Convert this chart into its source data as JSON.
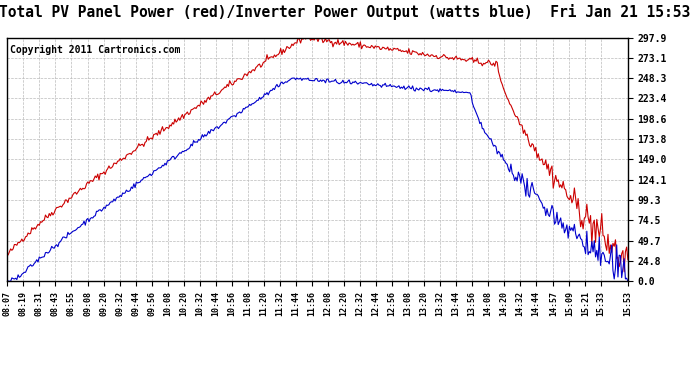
{
  "title": "Total PV Panel Power (red)/Inverter Power Output (watts blue)  Fri Jan 21 15:53",
  "copyright": "Copyright 2011 Cartronics.com",
  "yticks": [
    0.0,
    24.8,
    49.7,
    74.5,
    99.3,
    124.1,
    149.0,
    173.8,
    198.6,
    223.4,
    248.3,
    273.1,
    297.9
  ],
  "ymin": 0.0,
  "ymax": 297.9,
  "xtick_labels": [
    "08:07",
    "08:19",
    "08:31",
    "08:43",
    "08:55",
    "09:08",
    "09:20",
    "09:32",
    "09:44",
    "09:56",
    "10:08",
    "10:20",
    "10:32",
    "10:44",
    "10:56",
    "11:08",
    "11:20",
    "11:32",
    "11:44",
    "11:56",
    "12:08",
    "12:20",
    "12:32",
    "12:44",
    "12:56",
    "13:08",
    "13:20",
    "13:32",
    "13:44",
    "13:56",
    "14:08",
    "14:20",
    "14:32",
    "14:44",
    "14:57",
    "15:09",
    "15:21",
    "15:33",
    "15:53"
  ],
  "red_color": "#cc0000",
  "blue_color": "#0000cc",
  "bg_color": "#ffffff",
  "grid_color": "#bbbbbb",
  "title_fontsize": 10.5,
  "copyright_fontsize": 7
}
